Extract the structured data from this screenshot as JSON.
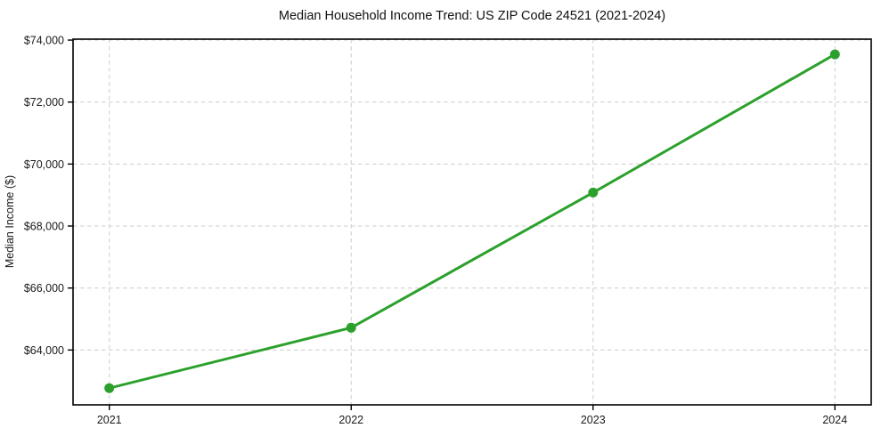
{
  "figure": {
    "title": "Median Household Income Trend: US ZIP Code 24521 (2021-2024)"
  },
  "chart_data": {
    "type": "line",
    "title": "Median Household Income Trend: US ZIP Code 24521 (2021-2024)",
    "xlabel": "",
    "ylabel": "Median Income ($)",
    "categories": [
      2021,
      2022,
      2023,
      2024
    ],
    "x_tick_labels": [
      "2021",
      "2022",
      "2023",
      "2024"
    ],
    "series": [
      {
        "name": "Median Household Income",
        "x": [
          2021,
          2022,
          2023,
          2024
        ],
        "values": [
          62770,
          64720,
          69080,
          73540
        ]
      }
    ],
    "y_ticks": [
      64000,
      66000,
      68000,
      70000,
      72000,
      74000
    ],
    "y_tick_labels": [
      "$64,000",
      "$66,000",
      "$68,000",
      "$70,000",
      "$72,000",
      "$74,000"
    ],
    "xlim": [
      2020.85,
      2024.15
    ],
    "ylim": [
      62230,
      74030
    ],
    "grid": true,
    "grid_style": "dashed",
    "legend": "none",
    "marker": "circle",
    "colors": {
      "line": "#2ca02c",
      "marker": "#2ca02c",
      "grid": "#cccccc",
      "spine": "#000000",
      "background": "#ffffff",
      "text": "#1a1a1a"
    }
  }
}
